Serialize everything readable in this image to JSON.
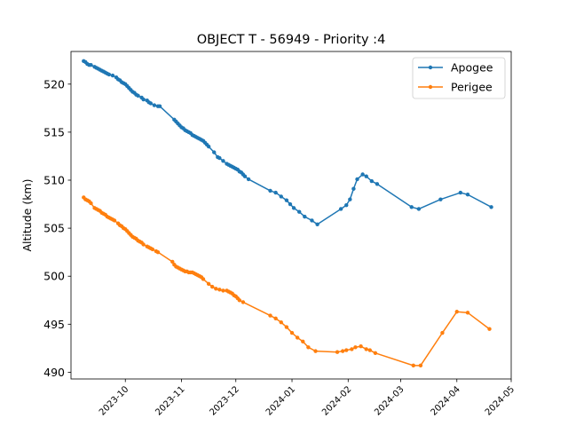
{
  "chart_data": {
    "type": "line",
    "title": "OBJECT T - 56949 - Priority :4",
    "xlabel": "",
    "ylabel": "Altitude (km)",
    "x_type": "date",
    "xlim": [
      "2023-09-01",
      "2024-05-01"
    ],
    "ylim": [
      489.3,
      523.4
    ],
    "y_ticks": [
      490,
      495,
      500,
      505,
      510,
      515,
      520
    ],
    "x_ticks": [
      "2023-10",
      "2023-11",
      "2023-12",
      "2024-01",
      "2024-02",
      "2024-03",
      "2024-04",
      "2024-05"
    ],
    "grid": false,
    "legend_position": "top-right",
    "series": [
      {
        "name": "Apogee",
        "color": "#1f77b4",
        "marker": "circle",
        "points": [
          [
            "2023-09-08",
            522.4
          ],
          [
            "2023-09-09",
            522.3
          ],
          [
            "2023-09-10",
            522.1
          ],
          [
            "2023-09-11",
            522.0
          ],
          [
            "2023-09-12",
            522.0
          ],
          [
            "2023-09-14",
            521.8
          ],
          [
            "2023-09-15",
            521.7
          ],
          [
            "2023-09-16",
            521.6
          ],
          [
            "2023-09-17",
            521.5
          ],
          [
            "2023-09-18",
            521.4
          ],
          [
            "2023-09-19",
            521.3
          ],
          [
            "2023-09-20",
            521.2
          ],
          [
            "2023-09-21",
            521.1
          ],
          [
            "2023-09-22",
            521.0
          ],
          [
            "2023-09-24",
            520.9
          ],
          [
            "2023-09-26",
            520.7
          ],
          [
            "2023-09-27",
            520.5
          ],
          [
            "2023-09-28",
            520.4
          ],
          [
            "2023-09-29",
            520.2
          ],
          [
            "2023-09-30",
            520.1
          ],
          [
            "2023-10-01",
            520.0
          ],
          [
            "2023-10-02",
            519.8
          ],
          [
            "2023-10-03",
            519.6
          ],
          [
            "2023-10-04",
            519.4
          ],
          [
            "2023-10-05",
            519.2
          ],
          [
            "2023-10-06",
            519.1
          ],
          [
            "2023-10-07",
            518.9
          ],
          [
            "2023-10-08",
            518.8
          ],
          [
            "2023-10-10",
            518.6
          ],
          [
            "2023-10-11",
            518.4
          ],
          [
            "2023-10-13",
            518.3
          ],
          [
            "2023-10-14",
            518.1
          ],
          [
            "2023-10-15",
            518.0
          ],
          [
            "2023-10-17",
            517.8
          ],
          [
            "2023-10-19",
            517.7
          ],
          [
            "2023-10-20",
            517.7
          ],
          [
            "2023-10-28",
            516.3
          ],
          [
            "2023-10-29",
            516.1
          ],
          [
            "2023-10-30",
            515.9
          ],
          [
            "2023-10-31",
            515.7
          ],
          [
            "2023-11-01",
            515.5
          ],
          [
            "2023-11-02",
            515.4
          ],
          [
            "2023-11-03",
            515.2
          ],
          [
            "2023-11-04",
            515.1
          ],
          [
            "2023-11-05",
            515.0
          ],
          [
            "2023-11-06",
            514.9
          ],
          [
            "2023-11-07",
            514.7
          ],
          [
            "2023-11-08",
            514.6
          ],
          [
            "2023-11-09",
            514.5
          ],
          [
            "2023-11-10",
            514.4
          ],
          [
            "2023-11-11",
            514.3
          ],
          [
            "2023-11-12",
            514.2
          ],
          [
            "2023-11-13",
            514.1
          ],
          [
            "2023-11-14",
            513.9
          ],
          [
            "2023-11-15",
            513.7
          ],
          [
            "2023-11-16",
            513.5
          ],
          [
            "2023-11-19",
            512.9
          ],
          [
            "2023-11-21",
            512.4
          ],
          [
            "2023-11-22",
            512.3
          ],
          [
            "2023-11-24",
            512.0
          ],
          [
            "2023-11-26",
            511.7
          ],
          [
            "2023-11-27",
            511.6
          ],
          [
            "2023-11-28",
            511.5
          ],
          [
            "2023-11-29",
            511.4
          ],
          [
            "2023-11-30",
            511.3
          ],
          [
            "2023-12-01",
            511.2
          ],
          [
            "2023-12-02",
            511.1
          ],
          [
            "2023-12-03",
            510.9
          ],
          [
            "2023-12-04",
            510.8
          ],
          [
            "2023-12-05",
            510.6
          ],
          [
            "2023-12-06",
            510.4
          ],
          [
            "2023-12-08",
            510.1
          ],
          [
            "2023-12-20",
            508.9
          ],
          [
            "2023-12-23",
            508.7
          ],
          [
            "2023-12-26",
            508.3
          ],
          [
            "2023-12-29",
            507.9
          ],
          [
            "2023-12-31",
            507.5
          ],
          [
            "2024-01-02",
            507.1
          ],
          [
            "2024-01-05",
            506.7
          ],
          [
            "2024-01-08",
            506.2
          ],
          [
            "2024-01-12",
            505.8
          ],
          [
            "2024-01-15",
            505.4
          ],
          [
            "2024-01-28",
            507.0
          ],
          [
            "2024-01-31",
            507.4
          ],
          [
            "2024-02-02",
            508.0
          ],
          [
            "2024-02-04",
            509.1
          ],
          [
            "2024-02-06",
            510.1
          ],
          [
            "2024-02-09",
            510.6
          ],
          [
            "2024-02-11",
            510.4
          ],
          [
            "2024-02-14",
            509.9
          ],
          [
            "2024-02-17",
            509.6
          ],
          [
            "2024-03-07",
            507.2
          ],
          [
            "2024-03-11",
            507.0
          ],
          [
            "2024-03-23",
            508.0
          ],
          [
            "2024-04-03",
            508.7
          ],
          [
            "2024-04-07",
            508.5
          ],
          [
            "2024-04-20",
            507.2
          ]
        ]
      },
      {
        "name": "Perigee",
        "color": "#ff7f0e",
        "marker": "circle",
        "points": [
          [
            "2023-09-08",
            508.2
          ],
          [
            "2023-09-09",
            508.0
          ],
          [
            "2023-09-10",
            507.9
          ],
          [
            "2023-09-11",
            507.8
          ],
          [
            "2023-09-12",
            507.6
          ],
          [
            "2023-09-14",
            507.1
          ],
          [
            "2023-09-15",
            507.0
          ],
          [
            "2023-09-16",
            506.9
          ],
          [
            "2023-09-17",
            506.8
          ],
          [
            "2023-09-18",
            506.6
          ],
          [
            "2023-09-19",
            506.5
          ],
          [
            "2023-09-20",
            506.4
          ],
          [
            "2023-09-21",
            506.2
          ],
          [
            "2023-09-22",
            506.1
          ],
          [
            "2023-09-23",
            506.0
          ],
          [
            "2023-09-24",
            505.9
          ],
          [
            "2023-09-25",
            505.8
          ],
          [
            "2023-09-27",
            505.5
          ],
          [
            "2023-09-28",
            505.3
          ],
          [
            "2023-09-29",
            505.2
          ],
          [
            "2023-09-30",
            505.0
          ],
          [
            "2023-10-01",
            504.9
          ],
          [
            "2023-10-02",
            504.7
          ],
          [
            "2023-10-03",
            504.5
          ],
          [
            "2023-10-04",
            504.3
          ],
          [
            "2023-10-05",
            504.1
          ],
          [
            "2023-10-06",
            504.0
          ],
          [
            "2023-10-07",
            503.9
          ],
          [
            "2023-10-08",
            503.7
          ],
          [
            "2023-10-09",
            503.6
          ],
          [
            "2023-10-10",
            503.5
          ],
          [
            "2023-10-11",
            503.3
          ],
          [
            "2023-10-13",
            503.1
          ],
          [
            "2023-10-14",
            503.0
          ],
          [
            "2023-10-15",
            502.9
          ],
          [
            "2023-10-16",
            502.8
          ],
          [
            "2023-10-18",
            502.6
          ],
          [
            "2023-10-19",
            502.5
          ],
          [
            "2023-10-27",
            501.5
          ],
          [
            "2023-10-28",
            501.2
          ],
          [
            "2023-10-29",
            501.0
          ],
          [
            "2023-10-30",
            500.9
          ],
          [
            "2023-10-31",
            500.8
          ],
          [
            "2023-11-01",
            500.7
          ],
          [
            "2023-11-02",
            500.6
          ],
          [
            "2023-11-03",
            500.5
          ],
          [
            "2023-11-04",
            500.5
          ],
          [
            "2023-11-05",
            500.4
          ],
          [
            "2023-11-06",
            500.4
          ],
          [
            "2023-11-07",
            500.4
          ],
          [
            "2023-11-08",
            500.3
          ],
          [
            "2023-11-09",
            500.2
          ],
          [
            "2023-11-10",
            500.1
          ],
          [
            "2023-11-11",
            500.0
          ],
          [
            "2023-11-12",
            499.9
          ],
          [
            "2023-11-13",
            499.7
          ],
          [
            "2023-11-16",
            499.2
          ],
          [
            "2023-11-18",
            498.9
          ],
          [
            "2023-11-20",
            498.7
          ],
          [
            "2023-11-22",
            498.6
          ],
          [
            "2023-11-24",
            498.5
          ],
          [
            "2023-11-26",
            498.5
          ],
          [
            "2023-11-27",
            498.4
          ],
          [
            "2023-11-28",
            498.3
          ],
          [
            "2023-11-29",
            498.2
          ],
          [
            "2023-11-30",
            498.0
          ],
          [
            "2023-12-01",
            497.9
          ],
          [
            "2023-12-02",
            497.7
          ],
          [
            "2023-12-03",
            497.5
          ],
          [
            "2023-12-05",
            497.3
          ],
          [
            "2023-12-20",
            495.9
          ],
          [
            "2023-12-23",
            495.6
          ],
          [
            "2023-12-26",
            495.2
          ],
          [
            "2023-12-29",
            494.7
          ],
          [
            "2024-01-01",
            494.1
          ],
          [
            "2024-01-04",
            493.6
          ],
          [
            "2024-01-07",
            493.2
          ],
          [
            "2024-01-10",
            492.6
          ],
          [
            "2024-01-14",
            492.2
          ],
          [
            "2024-01-26",
            492.1
          ],
          [
            "2024-01-29",
            492.2
          ],
          [
            "2024-01-31",
            492.3
          ],
          [
            "2024-02-03",
            492.4
          ],
          [
            "2024-02-05",
            492.6
          ],
          [
            "2024-02-08",
            492.7
          ],
          [
            "2024-02-11",
            492.4
          ],
          [
            "2024-02-13",
            492.3
          ],
          [
            "2024-02-16",
            492.0
          ],
          [
            "2024-03-08",
            490.7
          ],
          [
            "2024-03-12",
            490.7
          ],
          [
            "2024-03-24",
            494.1
          ],
          [
            "2024-04-01",
            496.3
          ],
          [
            "2024-04-07",
            496.2
          ],
          [
            "2024-04-19",
            494.5
          ]
        ]
      }
    ]
  }
}
